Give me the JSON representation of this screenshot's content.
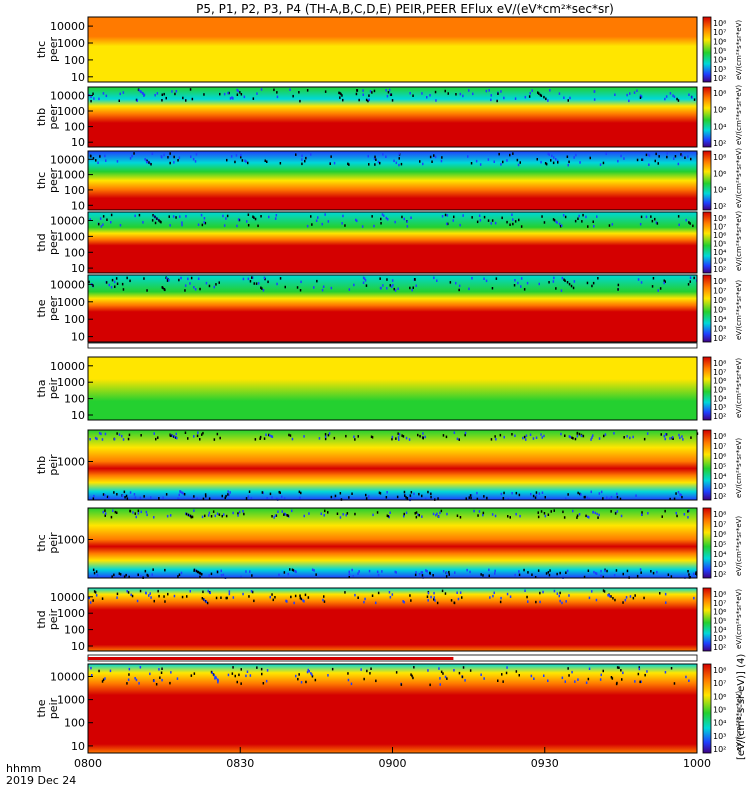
{
  "title": "P5, P1, P2, P3, P4 (TH-A,B,C,D,E) PEIR,PEER EFlux eV/(eV*cm²*sec*sr)",
  "colorbar_label": "[eV/(cm²-s-sr-eV)] (4)",
  "colorbar_label_repeat": "eV/(cm²*s*sr*eV)",
  "time_axis": {
    "label_line1": "hhmm",
    "label_line2": "2019 Dec 24",
    "ticks": [
      "0800",
      "0830",
      "0900",
      "0930",
      "1000"
    ]
  },
  "colors": {
    "red": "#d40000",
    "orange": "#ff7a00",
    "yellow": "#ffe600",
    "green": "#24d030",
    "cyan": "#00d8d8",
    "blue": "#1f3fff",
    "black": "#000000"
  },
  "chart_data": {
    "type": "heatmap",
    "x_range": [
      "0800",
      "1000"
    ],
    "colorbar_ticks": [
      "10⁸",
      "10⁷",
      "10⁶",
      "10⁵",
      "10⁴",
      "10³",
      "10²"
    ],
    "panels": [
      {
        "ylabel": [
          "thc",
          "peer"
        ],
        "yticks": [
          "10000",
          "1000",
          "100",
          "10"
        ],
        "pattern": "c1"
      },
      {
        "ylabel": [
          "thb",
          "peer"
        ],
        "yticks": [
          "10000",
          "1000",
          "100",
          "10"
        ],
        "pattern": "c2"
      },
      {
        "ylabel": [
          "thc",
          "peer"
        ],
        "yticks": [
          "10000",
          "1000",
          "100",
          "10"
        ],
        "pattern": "c3"
      },
      {
        "ylabel": [
          "thd",
          "peer"
        ],
        "yticks": [
          "10000",
          "1000",
          "100",
          "10"
        ],
        "pattern": "c4"
      },
      {
        "ylabel": [
          "the",
          "peer"
        ],
        "yticks": [
          "10000",
          "1000",
          "100",
          "10"
        ],
        "pattern": "c4"
      },
      {
        "ylabel": [
          "tha",
          "peir"
        ],
        "yticks": [
          "10000",
          "1000",
          "100",
          "10"
        ],
        "pattern": "i1"
      },
      {
        "ylabel": [
          "thb",
          "peir"
        ],
        "yticks": [
          "1000"
        ],
        "pattern": "i2"
      },
      {
        "ylabel": [
          "thc",
          "peir"
        ],
        "yticks": [
          "1000"
        ],
        "pattern": "i2"
      },
      {
        "ylabel": [
          "thd",
          "peir"
        ],
        "yticks": [
          "10000",
          "1000",
          "100",
          "10"
        ],
        "pattern": "i3"
      },
      {
        "ylabel": [
          "the",
          "peir"
        ],
        "yticks": [
          "10000",
          "1000",
          "100",
          "10"
        ],
        "pattern": "i3"
      }
    ]
  }
}
